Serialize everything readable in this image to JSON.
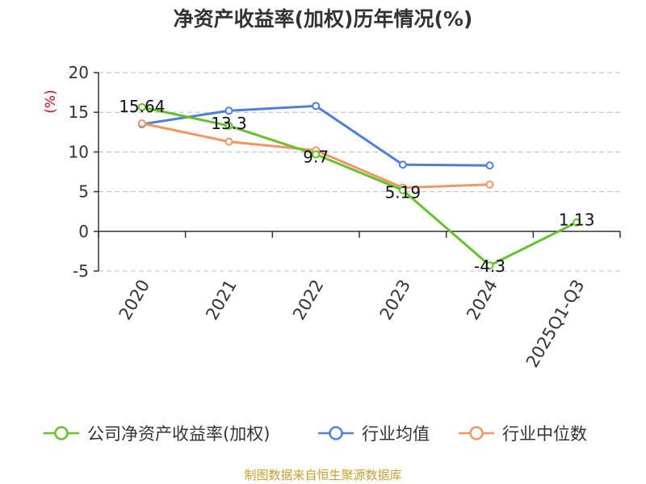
{
  "title": "净资产收益率(加权)历年情况(%)",
  "source": "制图数据来自恒生聚源数据库",
  "colors": {
    "company": "#65c22c",
    "industry_avg": "#4f7fd9",
    "industry_median": "#f59562",
    "axis": "#333333",
    "grid": "#bbbbbb",
    "unit": "#d0021b"
  },
  "chart_data": {
    "type": "line",
    "title": "净资产收益率(加权)历年情况(%)",
    "ylabel": "(%)",
    "xlabel": "",
    "ylim": [
      -5,
      20
    ],
    "yticks": [
      -5,
      0,
      5,
      10,
      15,
      20
    ],
    "ytick_labels": [
      "-5",
      "0",
      "5",
      "10",
      "15",
      "20"
    ],
    "categories": [
      "2020",
      "2021",
      "2022",
      "2023",
      "2024",
      "2025Q1-Q3"
    ],
    "grid": true,
    "legend_position": "bottom",
    "series": [
      {
        "name": "公司净资产收益率(加权)",
        "color": "#65c22c",
        "values": [
          15.64,
          13.3,
          9.7,
          5.19,
          -4.3,
          1.13
        ],
        "labels": [
          "15.64",
          "13.3",
          "9.7",
          "5.19",
          "-4.3",
          "1.13"
        ]
      },
      {
        "name": "行业均值",
        "color": "#4f7fd9",
        "values": [
          13.5,
          15.2,
          15.8,
          8.4,
          8.3,
          null
        ]
      },
      {
        "name": "行业中位数",
        "color": "#f59562",
        "values": [
          13.6,
          11.3,
          10.2,
          5.5,
          5.9,
          null
        ]
      }
    ]
  }
}
